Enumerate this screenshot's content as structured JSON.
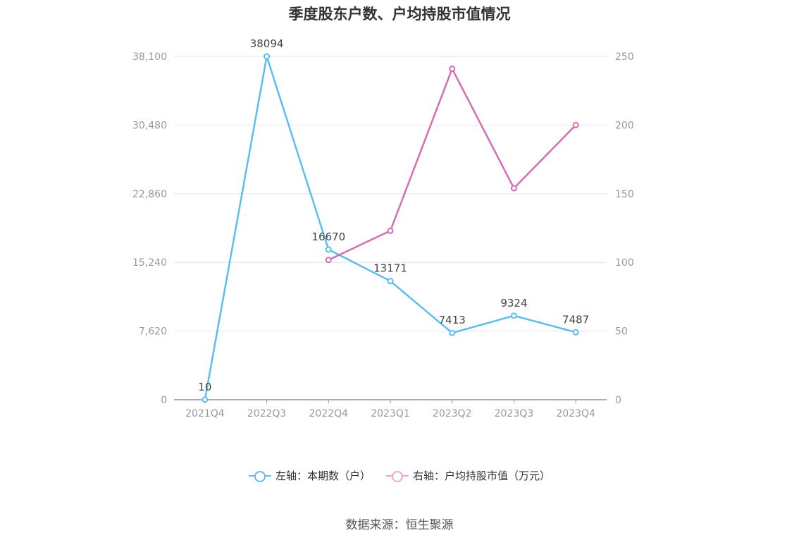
{
  "chart_data": {
    "type": "line",
    "title": "季度股东户数、户均持股市值情况",
    "categories": [
      "2021Q4",
      "2022Q3",
      "2022Q4",
      "2023Q1",
      "2023Q2",
      "2023Q3",
      "2023Q4"
    ],
    "y_left": {
      "ticks": [
        "0",
        "7,620",
        "15,240",
        "22,860",
        "30,480",
        "38,100"
      ],
      "ylim": [
        0,
        38100
      ]
    },
    "y_right": {
      "ticks": [
        "0",
        "50",
        "100",
        "150",
        "200",
        "250"
      ],
      "ylim": [
        0,
        250
      ]
    },
    "grid": true,
    "legend_position": "bottom",
    "series": [
      {
        "name": "左轴：本期数（户）",
        "axis": "left",
        "color": "#5bbfed",
        "values": [
          10,
          38094,
          16670,
          13171,
          7413,
          9324,
          7487
        ],
        "labels": [
          "10",
          "38094",
          "16670",
          "13171",
          "7413",
          "9324",
          "7487"
        ]
      },
      {
        "name": "右轴：户均持股市值（万元）",
        "axis": "right",
        "color": "#d36eb5",
        "values": [
          null,
          null,
          101.8,
          123,
          241,
          154,
          200
        ]
      }
    ]
  },
  "source": "数据来源：恒生聚源"
}
